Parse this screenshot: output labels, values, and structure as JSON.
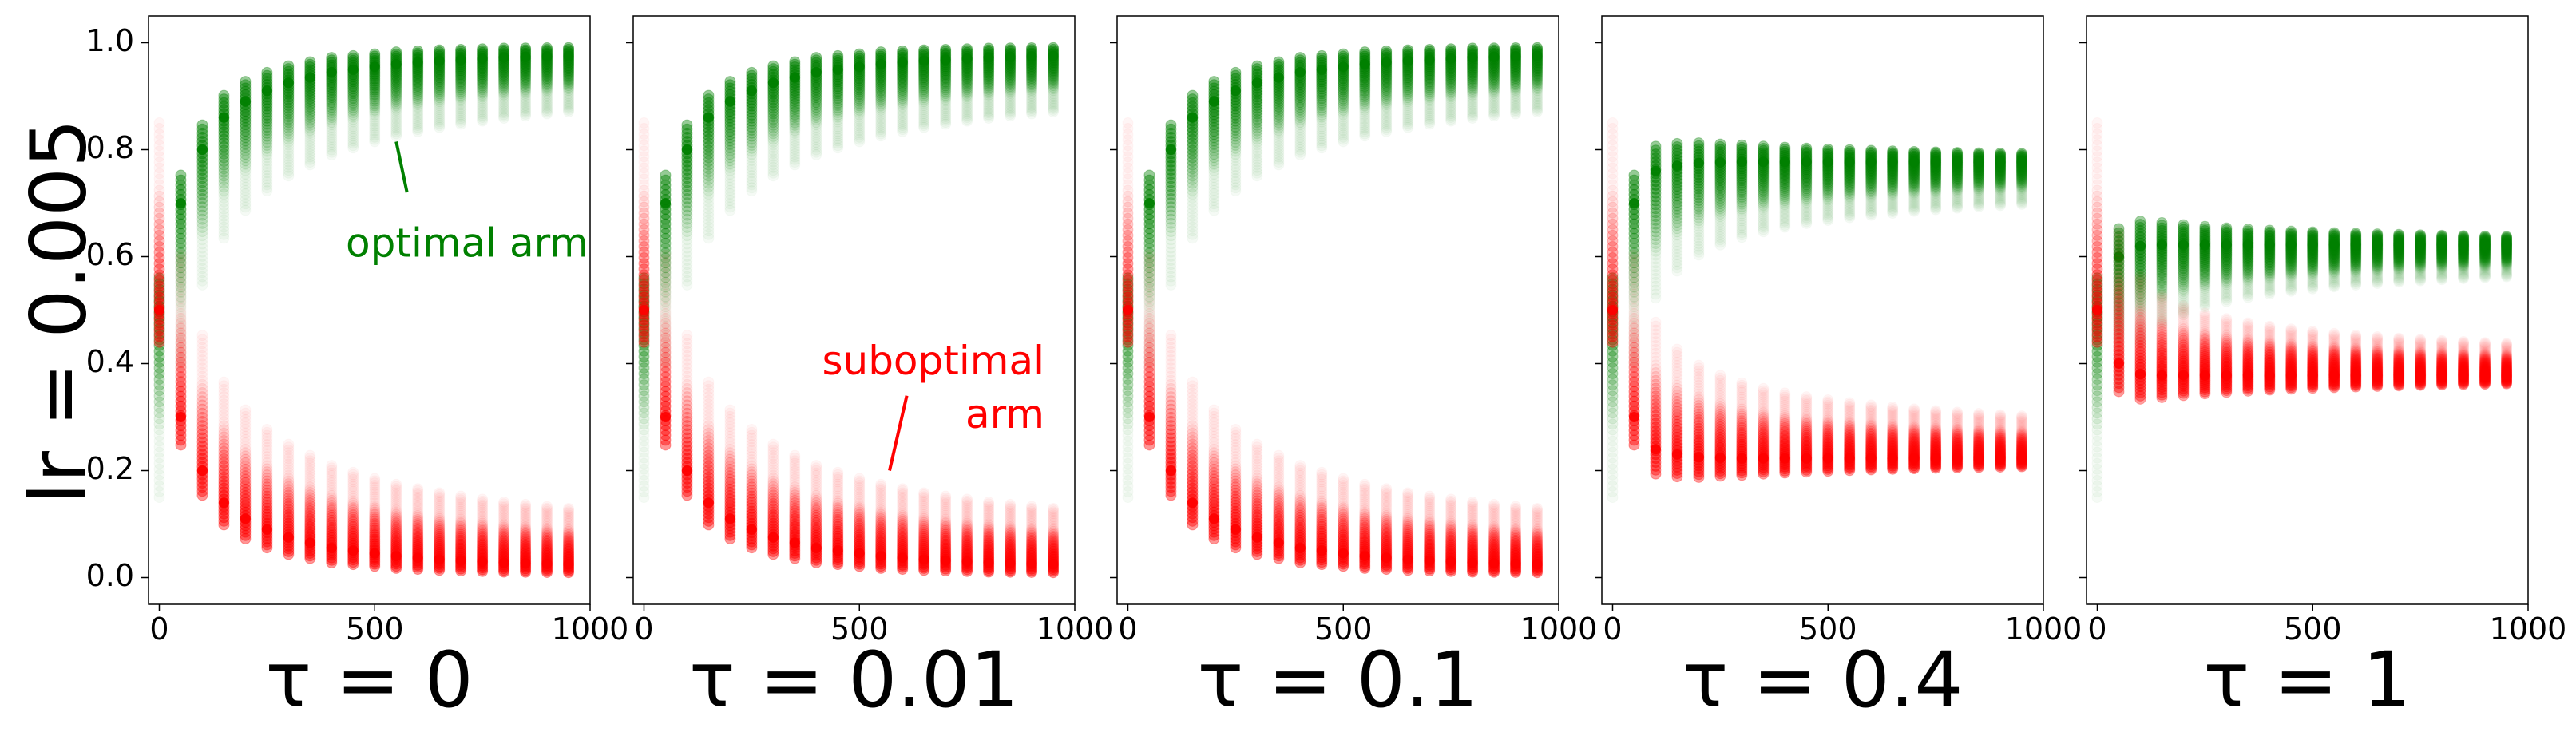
{
  "row_label": "lr = 0.005",
  "colors": {
    "optimal": "#008000",
    "suboptimal": "#ff0000"
  },
  "chart_data": [
    {
      "type": "scatter",
      "title": "τ = 0",
      "xlim": [
        -25,
        1000
      ],
      "ylim": [
        -0.05,
        1.05
      ],
      "xticks": [
        0,
        500,
        1000
      ],
      "yticks": [
        0.0,
        0.2,
        0.4,
        0.6,
        0.8,
        1.0
      ],
      "show_ytick_labels": true,
      "series": [
        {
          "name": "optimal arm",
          "color": "#008000",
          "x": [
            0,
            50,
            100,
            150,
            200,
            250,
            300,
            350,
            400,
            450,
            500,
            550,
            600,
            650,
            700,
            750,
            800,
            850,
            900,
            950
          ],
          "y": [
            0.5,
            0.7,
            0.8,
            0.86,
            0.89,
            0.91,
            0.925,
            0.935,
            0.945,
            0.95,
            0.955,
            0.96,
            0.963,
            0.966,
            0.968,
            0.97,
            0.972,
            0.973,
            0.974,
            0.975
          ]
        },
        {
          "name": "suboptimal arm",
          "color": "#ff0000",
          "x": [
            0,
            50,
            100,
            150,
            200,
            250,
            300,
            350,
            400,
            450,
            500,
            550,
            600,
            650,
            700,
            750,
            800,
            850,
            900,
            950
          ],
          "y": [
            0.5,
            0.3,
            0.2,
            0.14,
            0.11,
            0.09,
            0.075,
            0.065,
            0.055,
            0.05,
            0.045,
            0.04,
            0.037,
            0.034,
            0.032,
            0.03,
            0.028,
            0.027,
            0.026,
            0.025
          ]
        }
      ],
      "annotations": [
        {
          "text": "optimal arm",
          "series": "optimal arm"
        }
      ]
    },
    {
      "type": "scatter",
      "title": "τ = 0.01",
      "xlim": [
        -25,
        1000
      ],
      "ylim": [
        -0.05,
        1.05
      ],
      "xticks": [
        0,
        500,
        1000
      ],
      "yticks": [
        0.0,
        0.2,
        0.4,
        0.6,
        0.8,
        1.0
      ],
      "show_ytick_labels": false,
      "series": [
        {
          "name": "optimal arm",
          "color": "#008000",
          "x": [
            0,
            50,
            100,
            150,
            200,
            250,
            300,
            350,
            400,
            450,
            500,
            550,
            600,
            650,
            700,
            750,
            800,
            850,
            900,
            950
          ],
          "y": [
            0.5,
            0.7,
            0.8,
            0.86,
            0.89,
            0.91,
            0.925,
            0.935,
            0.945,
            0.95,
            0.955,
            0.96,
            0.963,
            0.966,
            0.968,
            0.97,
            0.972,
            0.973,
            0.974,
            0.975
          ]
        },
        {
          "name": "suboptimal arm",
          "color": "#ff0000",
          "x": [
            0,
            50,
            100,
            150,
            200,
            250,
            300,
            350,
            400,
            450,
            500,
            550,
            600,
            650,
            700,
            750,
            800,
            850,
            900,
            950
          ],
          "y": [
            0.5,
            0.3,
            0.2,
            0.14,
            0.11,
            0.09,
            0.075,
            0.065,
            0.055,
            0.05,
            0.045,
            0.04,
            0.037,
            0.034,
            0.032,
            0.03,
            0.028,
            0.027,
            0.026,
            0.025
          ]
        }
      ],
      "annotations": [
        {
          "text": "suboptimal arm",
          "series": "suboptimal arm"
        }
      ]
    },
    {
      "type": "scatter",
      "title": "τ = 0.1",
      "xlim": [
        -25,
        1000
      ],
      "ylim": [
        -0.05,
        1.05
      ],
      "xticks": [
        0,
        500,
        1000
      ],
      "yticks": [
        0.0,
        0.2,
        0.4,
        0.6,
        0.8,
        1.0
      ],
      "show_ytick_labels": false,
      "series": [
        {
          "name": "optimal arm",
          "color": "#008000",
          "x": [
            0,
            50,
            100,
            150,
            200,
            250,
            300,
            350,
            400,
            450,
            500,
            550,
            600,
            650,
            700,
            750,
            800,
            850,
            900,
            950
          ],
          "y": [
            0.5,
            0.7,
            0.8,
            0.86,
            0.89,
            0.91,
            0.925,
            0.935,
            0.945,
            0.95,
            0.955,
            0.96,
            0.963,
            0.966,
            0.968,
            0.97,
            0.972,
            0.973,
            0.974,
            0.975
          ]
        },
        {
          "name": "suboptimal arm",
          "color": "#ff0000",
          "x": [
            0,
            50,
            100,
            150,
            200,
            250,
            300,
            350,
            400,
            450,
            500,
            550,
            600,
            650,
            700,
            750,
            800,
            850,
            900,
            950
          ],
          "y": [
            0.5,
            0.3,
            0.2,
            0.14,
            0.11,
            0.09,
            0.075,
            0.065,
            0.055,
            0.05,
            0.045,
            0.04,
            0.037,
            0.034,
            0.032,
            0.03,
            0.028,
            0.027,
            0.026,
            0.025
          ]
        }
      ]
    },
    {
      "type": "scatter",
      "title": "τ = 0.4",
      "xlim": [
        -25,
        1000
      ],
      "ylim": [
        -0.05,
        1.05
      ],
      "xticks": [
        0,
        500,
        1000
      ],
      "yticks": [
        0.0,
        0.2,
        0.4,
        0.6,
        0.8,
        1.0
      ],
      "show_ytick_labels": false,
      "series": [
        {
          "name": "optimal arm",
          "color": "#008000",
          "x": [
            0,
            50,
            100,
            150,
            200,
            250,
            300,
            350,
            400,
            450,
            500,
            550,
            600,
            650,
            700,
            750,
            800,
            850,
            900,
            950
          ],
          "y": [
            0.5,
            0.7,
            0.76,
            0.77,
            0.775,
            0.776,
            0.777,
            0.777,
            0.777,
            0.777,
            0.777,
            0.777,
            0.777,
            0.777,
            0.777,
            0.777,
            0.777,
            0.777,
            0.777,
            0.777
          ]
        },
        {
          "name": "suboptimal arm",
          "color": "#ff0000",
          "x": [
            0,
            50,
            100,
            150,
            200,
            250,
            300,
            350,
            400,
            450,
            500,
            550,
            600,
            650,
            700,
            750,
            800,
            850,
            900,
            950
          ],
          "y": [
            0.5,
            0.3,
            0.24,
            0.23,
            0.225,
            0.224,
            0.223,
            0.223,
            0.223,
            0.223,
            0.223,
            0.223,
            0.223,
            0.223,
            0.223,
            0.223,
            0.223,
            0.223,
            0.223,
            0.223
          ]
        }
      ]
    },
    {
      "type": "scatter",
      "title": "τ = 1",
      "xlim": [
        -25,
        1000
      ],
      "ylim": [
        -0.05,
        1.05
      ],
      "xticks": [
        0,
        500,
        1000
      ],
      "yticks": [
        0.0,
        0.2,
        0.4,
        0.6,
        0.8,
        1.0
      ],
      "show_ytick_labels": false,
      "series": [
        {
          "name": "optimal arm",
          "color": "#008000",
          "x": [
            0,
            50,
            100,
            150,
            200,
            250,
            300,
            350,
            400,
            450,
            500,
            550,
            600,
            650,
            700,
            750,
            800,
            850,
            900,
            950
          ],
          "y": [
            0.5,
            0.6,
            0.62,
            0.622,
            0.622,
            0.622,
            0.622,
            0.622,
            0.622,
            0.622,
            0.622,
            0.622,
            0.622,
            0.622,
            0.622,
            0.622,
            0.622,
            0.622,
            0.622,
            0.622
          ]
        },
        {
          "name": "suboptimal arm",
          "color": "#ff0000",
          "x": [
            0,
            50,
            100,
            150,
            200,
            250,
            300,
            350,
            400,
            450,
            500,
            550,
            600,
            650,
            700,
            750,
            800,
            850,
            900,
            950
          ],
          "y": [
            0.5,
            0.4,
            0.38,
            0.378,
            0.378,
            0.378,
            0.378,
            0.378,
            0.378,
            0.378,
            0.378,
            0.378,
            0.378,
            0.378,
            0.378,
            0.378,
            0.378,
            0.378,
            0.378,
            0.378
          ]
        }
      ]
    }
  ]
}
